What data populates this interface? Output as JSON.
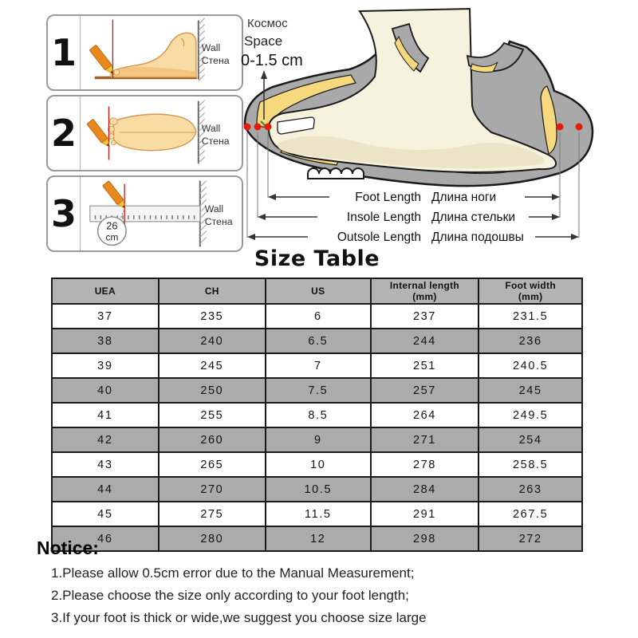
{
  "steps": [
    {
      "num": "1",
      "wall_en": "Wall",
      "wall_ru": "Стена"
    },
    {
      "num": "2",
      "wall_en": "Wall",
      "wall_ru": "Стена"
    },
    {
      "num": "3",
      "wall_en": "Wall",
      "wall_ru": "Стена",
      "mark_value": "26",
      "mark_unit": "cm"
    }
  ],
  "diagram": {
    "space_ru": "Космос",
    "space_en": "Space",
    "space_value": "0-1.5 cm",
    "measurements": [
      {
        "en": "Foot Length",
        "ru": "Длина ноги"
      },
      {
        "en": "Insole Length",
        "ru": "Длина стельки"
      },
      {
        "en": "Outsole Length",
        "ru": "Длина подошвы"
      }
    ]
  },
  "size_table": {
    "title": "Size Table",
    "columns": [
      "UEA",
      "CH",
      "US",
      "Internal length\n(mm)",
      "Foot width\n(mm)"
    ],
    "rows": [
      [
        "37",
        "235",
        "6",
        "237",
        "231.5"
      ],
      [
        "38",
        "240",
        "6.5",
        "244",
        "236"
      ],
      [
        "39",
        "245",
        "7",
        "251",
        "240.5"
      ],
      [
        "40",
        "250",
        "7.5",
        "257",
        "245"
      ],
      [
        "41",
        "255",
        "8.5",
        "264",
        "249.5"
      ],
      [
        "42",
        "260",
        "9",
        "271",
        "254"
      ],
      [
        "43",
        "265",
        "10",
        "278",
        "258.5"
      ],
      [
        "44",
        "270",
        "10.5",
        "284",
        "263"
      ],
      [
        "45",
        "275",
        "11.5",
        "291",
        "267.5"
      ],
      [
        "46",
        "280",
        "12",
        "298",
        "272"
      ]
    ]
  },
  "notice": {
    "title": "Notice:",
    "items": [
      "1.Please allow 0.5cm error due to the Manual Measurement;",
      "2.Please choose the size only according to your foot length;",
      "3.If your foot is thick or wide,we suggest you choose size large"
    ]
  },
  "colors": {
    "marker_red": "#e31b0e",
    "shoe_gray": "#a9a9a9",
    "insole_yellow": "#f6d97c",
    "foot_skin": "#f9dca4",
    "foot_cream": "#f7f2dd",
    "pencil_orange": "#e8891d",
    "table_header_gray": "#b3b3b3",
    "table_alt_row_gray": "#ababab"
  }
}
